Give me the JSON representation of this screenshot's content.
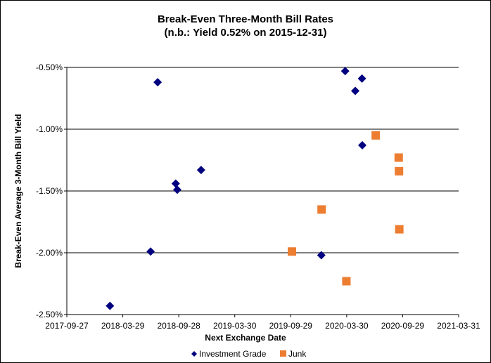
{
  "chart_data": {
    "type": "scatter",
    "title": "Break-Even Three-Month Bill Rates",
    "subtitle": "(n.b.: Yield  0.52% on 2015-12-31)",
    "xlabel": "Next Exchange Date",
    "ylabel": "Break-Even Average 3-Month  Bill Yield",
    "x_ticks": [
      "2017-09-27",
      "2018-03-29",
      "2018-09-28",
      "2019-03-30",
      "2019-09-29",
      "2020-03-30",
      "2020-09-29",
      "2021-03-31"
    ],
    "y_ticks": [
      -0.5,
      -1.0,
      -1.5,
      -2.0,
      -2.5
    ],
    "y_tick_labels": [
      "-0.50%",
      "-1.00%",
      "-1.50%",
      "-2.00%",
      "-2.50%"
    ],
    "xlim": [
      "2017-09-27",
      "2021-03-31"
    ],
    "ylim": [
      -2.5,
      -0.5
    ],
    "grid": "horizontal",
    "legend_position": "bottom",
    "series": [
      {
        "name": "Investment Grade",
        "marker": "diamond",
        "color": "#000080",
        "points": [
          {
            "x": "2018-02-15",
            "y": -2.43
          },
          {
            "x": "2018-06-28",
            "y": -1.99
          },
          {
            "x": "2018-07-21",
            "y": -0.62
          },
          {
            "x": "2018-09-18",
            "y": -1.44
          },
          {
            "x": "2018-09-23",
            "y": -1.49
          },
          {
            "x": "2018-12-10",
            "y": -1.33
          },
          {
            "x": "2020-01-07",
            "y": -2.02
          },
          {
            "x": "2020-03-25",
            "y": -0.53
          },
          {
            "x": "2020-04-27",
            "y": -0.69
          },
          {
            "x": "2020-05-19",
            "y": -0.59
          },
          {
            "x": "2020-05-20",
            "y": -1.13
          }
        ]
      },
      {
        "name": "Junk",
        "marker": "square",
        "color": "#ED7D31",
        "points": [
          {
            "x": "2019-10-03",
            "y": -1.99
          },
          {
            "x": "2020-01-08",
            "y": -1.65
          },
          {
            "x": "2020-03-29",
            "y": -2.23
          },
          {
            "x": "2020-07-03",
            "y": -1.05
          },
          {
            "x": "2020-09-16",
            "y": -1.23
          },
          {
            "x": "2020-09-17",
            "y": -1.34
          },
          {
            "x": "2020-09-18",
            "y": -1.81
          }
        ]
      }
    ]
  }
}
